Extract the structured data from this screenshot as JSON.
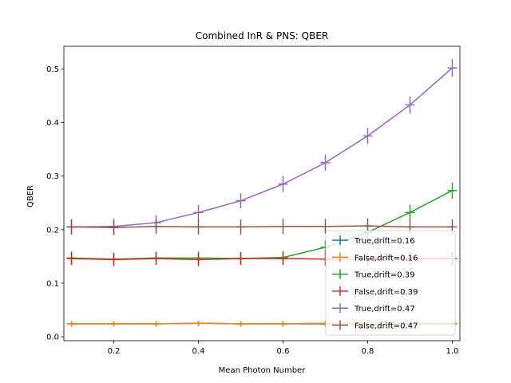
{
  "chart_data": {
    "type": "line",
    "title": "Combined InR & PNS: QBER",
    "xlabel": "Mean Photon Number",
    "ylabel": "QBER",
    "xlim": [
      0.082,
      1.018
    ],
    "ylim": [
      -0.0075,
      0.5425
    ],
    "xticks": [
      0.2,
      0.4,
      0.6,
      0.8,
      1.0
    ],
    "xtick_labels": [
      "0.2",
      "0.4",
      "0.6",
      "0.8",
      "1.0"
    ],
    "yticks": [
      0.0,
      0.1,
      0.2,
      0.3,
      0.4,
      0.5
    ],
    "ytick_labels": [
      "0.0",
      "0.1",
      "0.2",
      "0.3",
      "0.4",
      "0.5"
    ],
    "grid": false,
    "legend_position": "lower-right",
    "x": [
      0.1,
      0.2,
      0.3,
      0.4,
      0.5,
      0.6,
      0.7,
      0.8,
      0.9,
      1.0
    ],
    "series": [
      {
        "name": "True,drift=0.16",
        "color": "#1f77b4",
        "values": [
          0.024,
          0.024,
          0.024,
          0.025,
          0.024,
          0.024,
          0.024,
          0.024,
          0.024,
          0.024
        ],
        "errors": [
          0.005,
          0.005,
          0.005,
          0.005,
          0.005,
          0.005,
          0.005,
          0.005,
          0.005,
          0.005
        ]
      },
      {
        "name": "False,drift=0.16",
        "color": "#ff7f0e",
        "values": [
          0.024,
          0.024,
          0.024,
          0.025,
          0.024,
          0.024,
          0.025,
          0.025,
          0.025,
          0.025
        ],
        "errors": [
          0.005,
          0.005,
          0.005,
          0.005,
          0.005,
          0.005,
          0.005,
          0.005,
          0.005,
          0.005
        ]
      },
      {
        "name": "True,drift=0.39",
        "color": "#2ca02c",
        "values": [
          0.147,
          0.145,
          0.147,
          0.147,
          0.146,
          0.148,
          0.167,
          0.195,
          0.232,
          0.273
        ],
        "errors": [
          0.012,
          0.012,
          0.012,
          0.012,
          0.012,
          0.012,
          0.013,
          0.013,
          0.014,
          0.015
        ]
      },
      {
        "name": "False,drift=0.39",
        "color": "#d62728",
        "values": [
          0.146,
          0.144,
          0.146,
          0.144,
          0.146,
          0.146,
          0.145,
          0.145,
          0.146,
          0.146
        ],
        "errors": [
          0.012,
          0.012,
          0.012,
          0.012,
          0.012,
          0.012,
          0.012,
          0.012,
          0.012,
          0.012
        ]
      },
      {
        "name": "True,drift=0.47",
        "color": "#9467bd",
        "values": [
          0.205,
          0.206,
          0.213,
          0.232,
          0.254,
          0.285,
          0.325,
          0.375,
          0.433,
          0.502
        ],
        "errors": [
          0.014,
          0.014,
          0.014,
          0.014,
          0.014,
          0.015,
          0.015,
          0.015,
          0.016,
          0.017
        ]
      },
      {
        "name": "False,drift=0.47",
        "color": "#8c564b",
        "values": [
          0.205,
          0.204,
          0.206,
          0.205,
          0.205,
          0.206,
          0.206,
          0.207,
          0.205,
          0.205
        ],
        "errors": [
          0.014,
          0.014,
          0.014,
          0.014,
          0.014,
          0.014,
          0.014,
          0.014,
          0.014,
          0.014
        ]
      }
    ]
  }
}
